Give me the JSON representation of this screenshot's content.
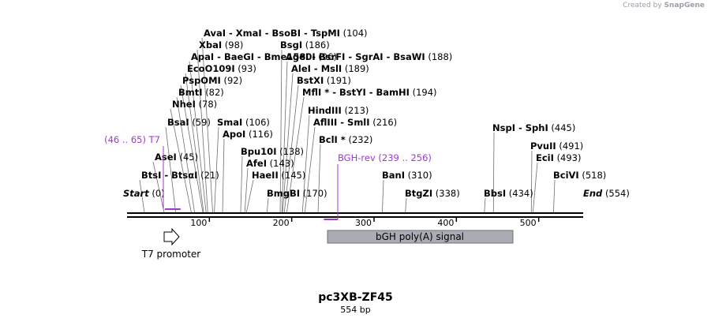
{
  "app": {
    "logo_prefix": "Created by",
    "logo_brand": "SnapGene"
  },
  "map": {
    "name": "pc3XB-ZF45",
    "length_label": "554 bp",
    "length": 554,
    "start_label": "Start",
    "end_label": "End"
  },
  "ticks": [
    100,
    200,
    300,
    400,
    500
  ],
  "left_features": [
    {
      "pos": "(104)",
      "parts": [
        "AvaI",
        "XmaI",
        "BsoBI",
        "TspMI"
      ],
      "sites": [
        104
      ]
    },
    {
      "pos": "(98)",
      "parts": [
        "XbaI"
      ],
      "sites": [
        98
      ]
    },
    {
      "pos": "(96)",
      "parts": [
        "ApaI",
        "BaeGI",
        "Bme1580I"
      ],
      "sites": [
        96
      ]
    },
    {
      "pos": "(93)",
      "parts": [
        "EcoO109I"
      ],
      "sites": [
        93
      ]
    },
    {
      "pos": "(92)",
      "parts": [
        "PspOMI"
      ],
      "sites": [
        92
      ]
    },
    {
      "pos": "(82)",
      "parts": [
        "BmtI"
      ],
      "sites": [
        82
      ]
    },
    {
      "pos": "(78)",
      "parts": [
        "NheI"
      ],
      "sites": [
        78
      ]
    },
    {
      "pos": "(59)",
      "parts": [
        "BsaI"
      ],
      "sites": [
        59
      ]
    },
    {
      "pos": "(45)",
      "parts": [
        "AseI"
      ],
      "sites": [
        45
      ]
    },
    {
      "pos": "(21)",
      "parts": [
        "BtsI",
        "BtsαI"
      ],
      "sites": [
        21
      ]
    },
    {
      "pos": "(0)",
      "parts": [
        "Start"
      ],
      "sites": [
        0
      ],
      "italic": true
    }
  ],
  "right_features": [
    {
      "pos": "(186)",
      "parts": [
        "BsgI"
      ],
      "sites": [
        186
      ]
    },
    {
      "pos": "(188)",
      "parts": [
        "AgeI",
        "BsrFI",
        "SgrAI",
        "BsaWI"
      ],
      "sites": [
        188
      ]
    },
    {
      "pos": "(189)",
      "parts": [
        "AleI",
        "MslI"
      ],
      "sites": [
        189
      ]
    },
    {
      "pos": "(191)",
      "parts": [
        "BstXI"
      ],
      "sites": [
        191
      ]
    },
    {
      "pos": "(194)",
      "parts": [
        "MflI *",
        "BstYI",
        "BamHI"
      ],
      "sites": [
        194
      ]
    },
    {
      "pos": "(213)",
      "parts": [
        "HindIII"
      ],
      "sites": [
        213
      ]
    },
    {
      "pos": "(216)",
      "parts": [
        "AflIII",
        "SmlI"
      ],
      "sites": [
        216
      ]
    },
    {
      "pos": "(232)",
      "parts": [
        "BclI *"
      ],
      "sites": [
        232
      ]
    },
    {
      "pos": "(106)",
      "parts": [
        "SmaI"
      ],
      "sites": [
        106
      ]
    },
    {
      "pos": "(116)",
      "parts": [
        "ApoI"
      ],
      "sites": [
        116
      ]
    },
    {
      "pos": "(138)",
      "parts": [
        "Bpu10I"
      ],
      "sites": [
        138
      ]
    },
    {
      "pos": "(143)",
      "parts": [
        "AfeI"
      ],
      "sites": [
        143
      ]
    },
    {
      "pos": "(145)",
      "parts": [
        "HaeII"
      ],
      "sites": [
        145
      ]
    },
    {
      "pos": "(170)",
      "parts": [
        "BmgBI"
      ],
      "sites": [
        170
      ]
    },
    {
      "pos": "(310)",
      "parts": [
        "BanI"
      ],
      "sites": [
        310
      ]
    },
    {
      "pos": "(338)",
      "parts": [
        "BtgZI"
      ],
      "sites": [
        338
      ]
    },
    {
      "pos": "(434)",
      "parts": [
        "BbsI"
      ],
      "sites": [
        434
      ]
    },
    {
      "pos": "(445)",
      "parts": [
        "NspI",
        "SphI"
      ],
      "sites": [
        445
      ]
    },
    {
      "pos": "(491)",
      "parts": [
        "PvuII"
      ],
      "sites": [
        491
      ]
    },
    {
      "pos": "(493)",
      "parts": [
        "EciI"
      ],
      "sites": [
        493
      ]
    },
    {
      "pos": "(518)",
      "parts": [
        "BciVI"
      ],
      "sites": [
        518
      ]
    },
    {
      "pos": "(554)",
      "parts": [
        "End"
      ],
      "sites": [
        554
      ],
      "italic": true
    }
  ],
  "primers": [
    {
      "name": "T7",
      "range": "(46 .. 65)",
      "from": 46,
      "to": 65,
      "dir": "forward"
    },
    {
      "name": "BGH-rev",
      "range": "(239 .. 256)",
      "from": 239,
      "to": 256,
      "dir": "reverse"
    }
  ],
  "features": [
    {
      "name": "T7 promoter",
      "from": 46,
      "to": 65,
      "kind": "promoter"
    },
    {
      "name": "bGH poly(A) signal",
      "from": 242,
      "to": 466,
      "kind": "polyA"
    }
  ],
  "colors": {
    "primer": "#9b3ad0",
    "polyA": "#a9adb3",
    "line": "#000000",
    "connector": "#6f6f6f"
  }
}
